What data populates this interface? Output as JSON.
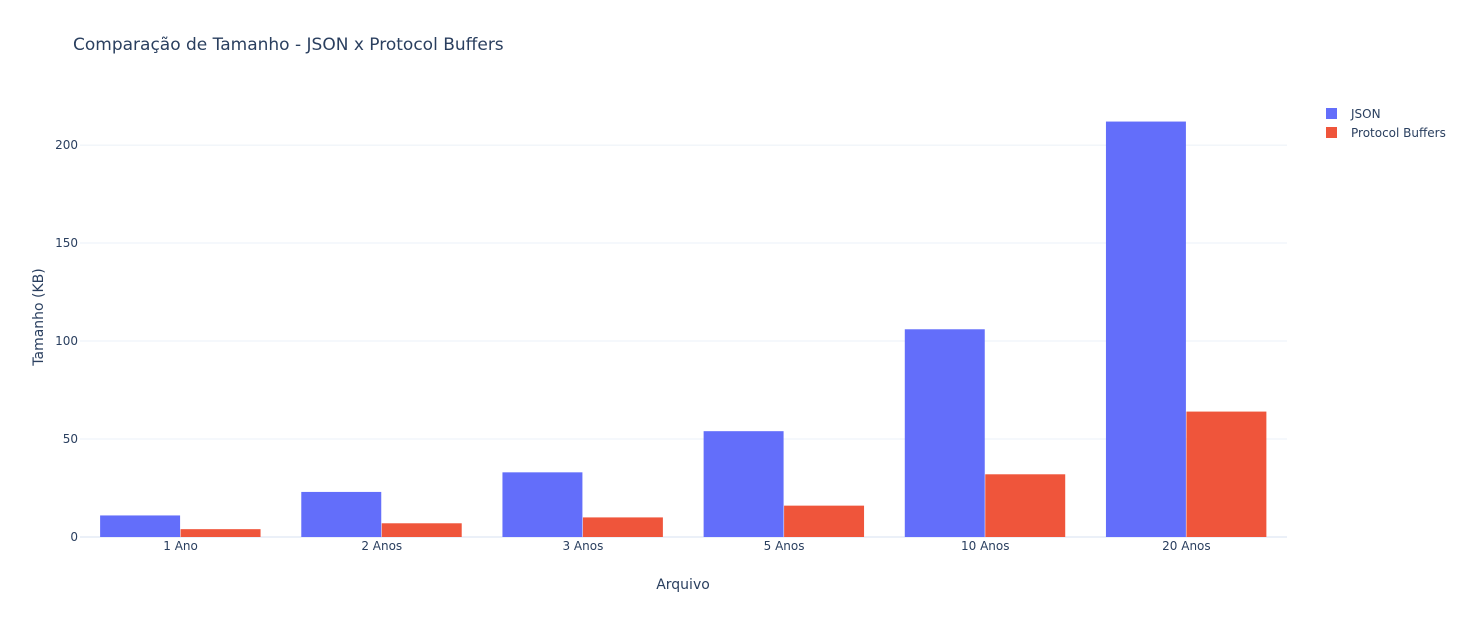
{
  "chart_data": {
    "type": "bar",
    "title": "Comparação de Tamanho - JSON x Protocol Buffers",
    "xlabel": "Arquivo",
    "ylabel": "Tamanho (KB)",
    "categories": [
      "1 Ano",
      "2 Anos",
      "3 Anos",
      "5 Anos",
      "10 Anos",
      "20 Anos"
    ],
    "series": [
      {
        "name": "JSON",
        "color": "#636efa",
        "values": [
          11,
          23,
          33,
          54,
          106,
          212
        ]
      },
      {
        "name": "Protocol Buffers",
        "color": "#ef553b",
        "values": [
          4,
          7,
          10,
          16,
          32,
          64
        ]
      }
    ],
    "ylim": [
      0,
      223
    ],
    "yticks": [
      0,
      50,
      100,
      150,
      200
    ],
    "grid": true,
    "legend": "top-right"
  }
}
